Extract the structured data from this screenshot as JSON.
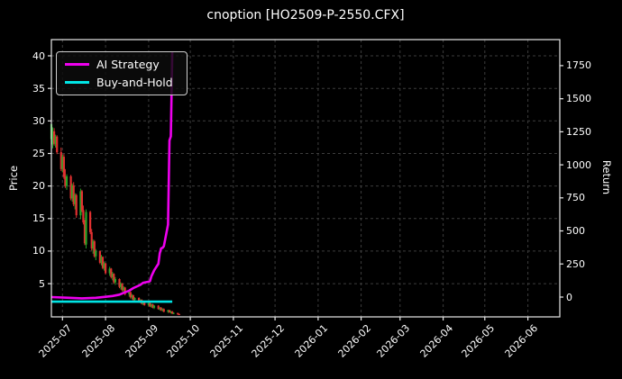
{
  "title": "cnoption [HO2509-P-2550.CFX]",
  "legend": {
    "position": "upper-left",
    "items": [
      {
        "label": "AI Strategy",
        "color": "#ee00ee"
      },
      {
        "label": "Buy-and-Hold",
        "color": "#00e5e5"
      }
    ]
  },
  "axes": {
    "left": {
      "label": "Price",
      "ticks": [
        5,
        10,
        15,
        20,
        25,
        30,
        35,
        40
      ]
    },
    "right": {
      "label": "Return",
      "ticks": [
        0,
        250,
        500,
        750,
        1000,
        1250,
        1500,
        1750
      ]
    },
    "x": {
      "tick_labels": [
        "2025-07",
        "2025-08",
        "2025-09",
        "2025-10",
        "2025-11",
        "2025-12",
        "2026-01",
        "2026-02",
        "2026-03",
        "2026-04",
        "2026-05",
        "2026-06"
      ]
    }
  },
  "colors": {
    "background": "#000000",
    "text": "#ffffff",
    "spine": "#e8e8e8",
    "grid": "#3d3d3d",
    "candle_up": "#26a526",
    "candle_down": "#e13030",
    "ai_strategy": "#ee00ee",
    "buy_and_hold": "#00e5e5"
  },
  "chart_data": {
    "type": "candlestick+line",
    "title": "cnoption [HO2509-P-2550.CFX]",
    "grid": true,
    "legend_position": "upper-left",
    "x_domain": [
      "2025-06-23",
      "2026-06-24"
    ],
    "price_axis": {
      "label": "Price",
      "ticks": [
        5,
        10,
        15,
        20,
        25,
        30,
        35,
        40
      ],
      "range": [
        -0.11,
        42.49
      ]
    },
    "return_axis": {
      "label": "Return",
      "ticks": [
        0,
        250,
        500,
        750,
        1000,
        1250,
        1500,
        1750
      ],
      "range": [
        -150,
        1947
      ]
    },
    "candles": {
      "columns": [
        "date",
        "open",
        "high",
        "low",
        "close"
      ],
      "rows": [
        [
          "2025-06-23",
          27.2,
          30.3,
          26.6,
          29.5
        ],
        [
          "2025-06-24",
          26.4,
          29.0,
          25.8,
          28.4
        ],
        [
          "2025-06-25",
          28.4,
          28.9,
          26.2,
          26.5
        ],
        [
          "2025-06-26",
          26.5,
          27.9,
          25.9,
          27.6
        ],
        [
          "2025-06-27",
          27.6,
          27.8,
          24.9,
          25.2
        ],
        [
          "2025-06-30",
          25.2,
          25.9,
          22.3,
          22.6
        ],
        [
          "2025-07-01",
          22.6,
          24.8,
          22.1,
          24.5
        ],
        [
          "2025-07-02",
          24.5,
          24.9,
          21.1,
          21.4
        ],
        [
          "2025-07-03",
          21.4,
          22.6,
          19.7,
          20.0
        ],
        [
          "2025-07-04",
          20.0,
          21.8,
          19.4,
          21.5
        ],
        [
          "2025-07-07",
          21.5,
          21.7,
          17.8,
          18.1
        ],
        [
          "2025-07-08",
          18.1,
          20.4,
          17.6,
          20.1
        ],
        [
          "2025-07-09",
          20.1,
          20.6,
          16.9,
          17.2
        ],
        [
          "2025-07-10",
          17.2,
          18.9,
          16.4,
          18.6
        ],
        [
          "2025-07-11",
          18.6,
          18.8,
          15.1,
          15.5
        ],
        [
          "2025-07-14",
          15.5,
          19.6,
          14.9,
          19.2
        ],
        [
          "2025-07-15",
          19.2,
          19.4,
          16.0,
          16.3
        ],
        [
          "2025-07-16",
          16.3,
          17.0,
          14.1,
          14.4
        ],
        [
          "2025-07-17",
          14.4,
          14.8,
          10.9,
          11.2
        ],
        [
          "2025-07-18",
          11.0,
          16.4,
          10.4,
          16.0
        ],
        [
          "2025-07-21",
          16.0,
          16.2,
          12.6,
          12.9
        ],
        [
          "2025-07-22",
          12.9,
          13.4,
          10.1,
          10.4
        ],
        [
          "2025-07-23",
          10.4,
          11.8,
          9.6,
          11.5
        ],
        [
          "2025-07-24",
          11.5,
          11.7,
          9.0,
          9.2
        ],
        [
          "2025-07-25",
          9.2,
          10.3,
          8.6,
          10.0
        ],
        [
          "2025-07-28",
          10.0,
          10.1,
          8.0,
          8.2
        ],
        [
          "2025-07-29",
          8.2,
          9.4,
          7.8,
          9.1
        ],
        [
          "2025-07-30",
          9.1,
          9.2,
          7.2,
          7.4
        ],
        [
          "2025-07-31",
          7.4,
          8.4,
          7.0,
          8.1
        ],
        [
          "2025-08-01",
          8.1,
          8.2,
          6.4,
          6.6
        ],
        [
          "2025-08-04",
          6.6,
          7.6,
          6.2,
          7.3
        ],
        [
          "2025-08-05",
          7.3,
          7.4,
          5.8,
          6.0
        ],
        [
          "2025-08-06",
          6.0,
          6.8,
          5.5,
          6.5
        ],
        [
          "2025-08-07",
          6.5,
          6.6,
          5.0,
          5.2
        ],
        [
          "2025-08-08",
          5.2,
          6.0,
          4.8,
          5.7
        ],
        [
          "2025-08-11",
          5.7,
          5.8,
          4.3,
          4.5
        ],
        [
          "2025-08-12",
          4.5,
          5.2,
          4.1,
          5.0
        ],
        [
          "2025-08-13",
          5.0,
          5.1,
          3.8,
          4.0
        ],
        [
          "2025-08-14",
          4.0,
          4.6,
          3.5,
          4.4
        ],
        [
          "2025-08-15",
          4.4,
          4.5,
          3.2,
          3.4
        ],
        [
          "2025-08-18",
          3.4,
          3.9,
          3.0,
          3.7
        ],
        [
          "2025-08-19",
          3.7,
          3.8,
          2.7,
          2.9
        ],
        [
          "2025-08-20",
          2.9,
          3.4,
          2.6,
          3.2
        ],
        [
          "2025-08-21",
          3.2,
          3.3,
          2.4,
          2.5
        ],
        [
          "2025-08-22",
          2.5,
          2.9,
          2.2,
          2.8
        ],
        [
          "2025-08-25",
          2.8,
          2.9,
          2.1,
          2.2
        ],
        [
          "2025-08-26",
          2.2,
          2.6,
          2.0,
          2.5
        ],
        [
          "2025-08-27",
          2.5,
          2.6,
          1.8,
          1.9
        ],
        [
          "2025-08-28",
          1.9,
          2.3,
          1.7,
          2.2
        ],
        [
          "2025-08-29",
          2.2,
          2.3,
          1.6,
          1.7
        ],
        [
          "2025-09-01",
          1.7,
          2.1,
          1.5,
          2.0
        ],
        [
          "2025-09-02",
          2.0,
          2.1,
          1.4,
          1.5
        ],
        [
          "2025-09-03",
          1.5,
          1.9,
          1.3,
          1.8
        ],
        [
          "2025-09-04",
          1.8,
          1.9,
          1.2,
          1.3
        ],
        [
          "2025-09-05",
          1.3,
          1.7,
          1.1,
          1.6
        ],
        [
          "2025-09-08",
          1.6,
          1.7,
          1.0,
          1.1
        ],
        [
          "2025-09-09",
          1.1,
          1.4,
          0.9,
          1.3
        ],
        [
          "2025-09-10",
          1.3,
          1.4,
          0.8,
          0.9
        ],
        [
          "2025-09-11",
          0.9,
          1.2,
          0.7,
          1.1
        ],
        [
          "2025-09-12",
          1.1,
          1.2,
          0.6,
          0.7
        ],
        [
          "2025-09-15",
          0.7,
          1.0,
          0.5,
          0.9
        ],
        [
          "2025-09-16",
          0.9,
          1.0,
          0.5,
          0.6
        ],
        [
          "2025-09-17",
          0.6,
          0.8,
          0.4,
          0.7
        ],
        [
          "2025-09-18",
          0.7,
          0.8,
          0.3,
          0.4
        ],
        [
          "2025-09-19",
          0.4,
          0.6,
          0.3,
          0.5
        ],
        [
          "2025-09-22",
          0.5,
          0.5,
          0.2,
          0.3
        ],
        [
          "2025-09-23",
          0.3,
          0.4,
          0.2,
          0.25
        ]
      ]
    },
    "series": [
      {
        "name": "AI Strategy",
        "axis": "return",
        "color": "#ee00ee",
        "points": [
          [
            "2025-06-23",
            0
          ],
          [
            "2025-07-04",
            -5
          ],
          [
            "2025-07-15",
            -10
          ],
          [
            "2025-07-25",
            -6
          ],
          [
            "2025-08-01",
            2
          ],
          [
            "2025-08-06",
            8
          ],
          [
            "2025-08-11",
            18
          ],
          [
            "2025-08-14",
            32
          ],
          [
            "2025-08-18",
            48
          ],
          [
            "2025-08-21",
            68
          ],
          [
            "2025-08-26",
            92
          ],
          [
            "2025-08-28",
            108
          ],
          [
            "2025-09-01",
            116
          ],
          [
            "2025-09-02",
            120
          ],
          [
            "2025-09-03",
            158
          ],
          [
            "2025-09-05",
            202
          ],
          [
            "2025-09-08",
            252
          ],
          [
            "2025-09-09",
            330
          ],
          [
            "2025-09-10",
            368
          ],
          [
            "2025-09-11",
            372
          ],
          [
            "2025-09-12",
            385
          ],
          [
            "2025-09-15",
            548
          ],
          [
            "2025-09-16",
            1185
          ],
          [
            "2025-09-17",
            1215
          ],
          [
            "2025-09-18",
            1852
          ]
        ]
      },
      {
        "name": "Buy-and-Hold",
        "axis": "return",
        "color": "#00e5e5",
        "points": [
          [
            "2025-06-23",
            -35
          ],
          [
            "2025-09-18",
            -35
          ]
        ]
      }
    ]
  }
}
